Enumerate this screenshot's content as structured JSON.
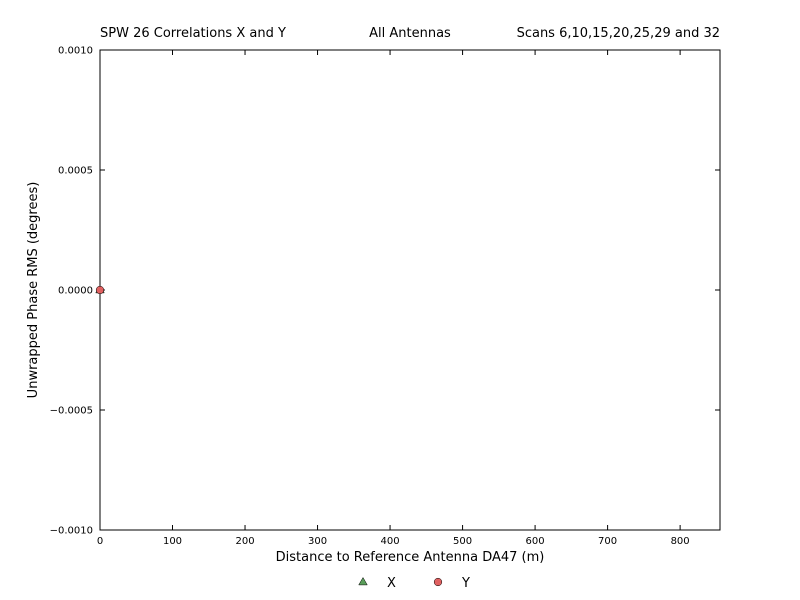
{
  "chart_data": {
    "type": "scatter",
    "title_parts": {
      "left": "SPW 26 Correlations X and Y",
      "center": "All Antennas",
      "right": "Scans 6,10,15,20,25,29 and 32"
    },
    "xlabel": "Distance to Reference Antenna DA47 (m)",
    "ylabel": "Unwrapped Phase RMS (degrees)",
    "xlim": [
      0,
      855
    ],
    "ylim": [
      -0.001,
      0.001
    ],
    "x_ticks": [
      0,
      100,
      200,
      300,
      400,
      500,
      600,
      700,
      800
    ],
    "x_tick_labels": [
      "0",
      "100",
      "200",
      "300",
      "400",
      "500",
      "600",
      "700",
      "800"
    ],
    "y_ticks": [
      -0.001,
      -0.0005,
      0,
      0.0005,
      0.001
    ],
    "y_tick_labels": [
      "−0.0010",
      "−0.0005",
      "0.0000",
      "0.0005",
      "0.0010"
    ],
    "grid": false,
    "legend_position": "bottom-center",
    "series": [
      {
        "name": "X",
        "marker": "triangle",
        "color": "#5a9e5a",
        "points": [
          {
            "x": 0,
            "y": 0
          }
        ]
      },
      {
        "name": "Y",
        "marker": "circle",
        "color": "#e06060",
        "points": [
          {
            "x": 0,
            "y": 0
          }
        ]
      }
    ]
  }
}
